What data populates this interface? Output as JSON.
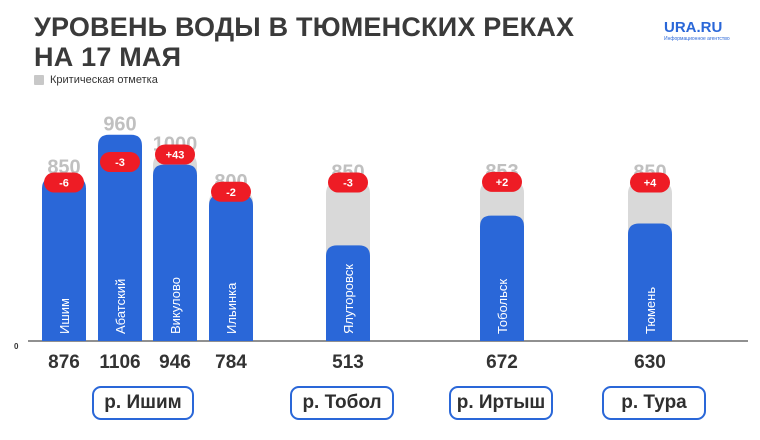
{
  "page": {
    "title_lines": [
      "УРОВЕНЬ ВОДЫ В ТЮМЕНСКИХ РЕКАХ",
      "НА 17 МАЯ"
    ],
    "logo": {
      "name": "URA.RU",
      "subtitle": "Информационное агентство"
    },
    "legend_label": "Критическая отметка"
  },
  "colors": {
    "bar": "#2a67d8",
    "critical": "#d9d9d9",
    "badge": "#ee1c25",
    "text": "#3a3a3a"
  },
  "chart_data": {
    "type": "bar",
    "title": "УРОВЕНЬ ВОДЫ В ТЮМЕНСКИХ РЕКАХ НА 17 МАЯ",
    "y_axis_zero_label": "0",
    "categories": [
      "Ишим",
      "Абатский",
      "Викулово",
      "Ильинка",
      "Ялуторовск",
      "Тобольск",
      "Тюмень"
    ],
    "series": [
      {
        "name": "",
        "values": [
          876,
          1106,
          946,
          784,
          513,
          672,
          630
        ]
      },
      {
        "name": "Критическая отметка",
        "values": [
          850,
          960,
          1000,
          800,
          850,
          853,
          850
        ]
      }
    ],
    "changes": [
      "-6",
      "-3",
      "+43",
      "-2",
      "-3",
      "+2",
      "+4"
    ],
    "groups": [
      {
        "label": "р. Ишим",
        "members": [
          "Ишим",
          "Абатский",
          "Викулово",
          "Ильинка"
        ]
      },
      {
        "label": "р. Тобол",
        "members": [
          "Ялуторовск"
        ]
      },
      {
        "label": "р. Иртыш",
        "members": [
          "Тобольск"
        ]
      },
      {
        "label": "р. Тура",
        "members": [
          "Тюмень"
        ]
      }
    ]
  }
}
